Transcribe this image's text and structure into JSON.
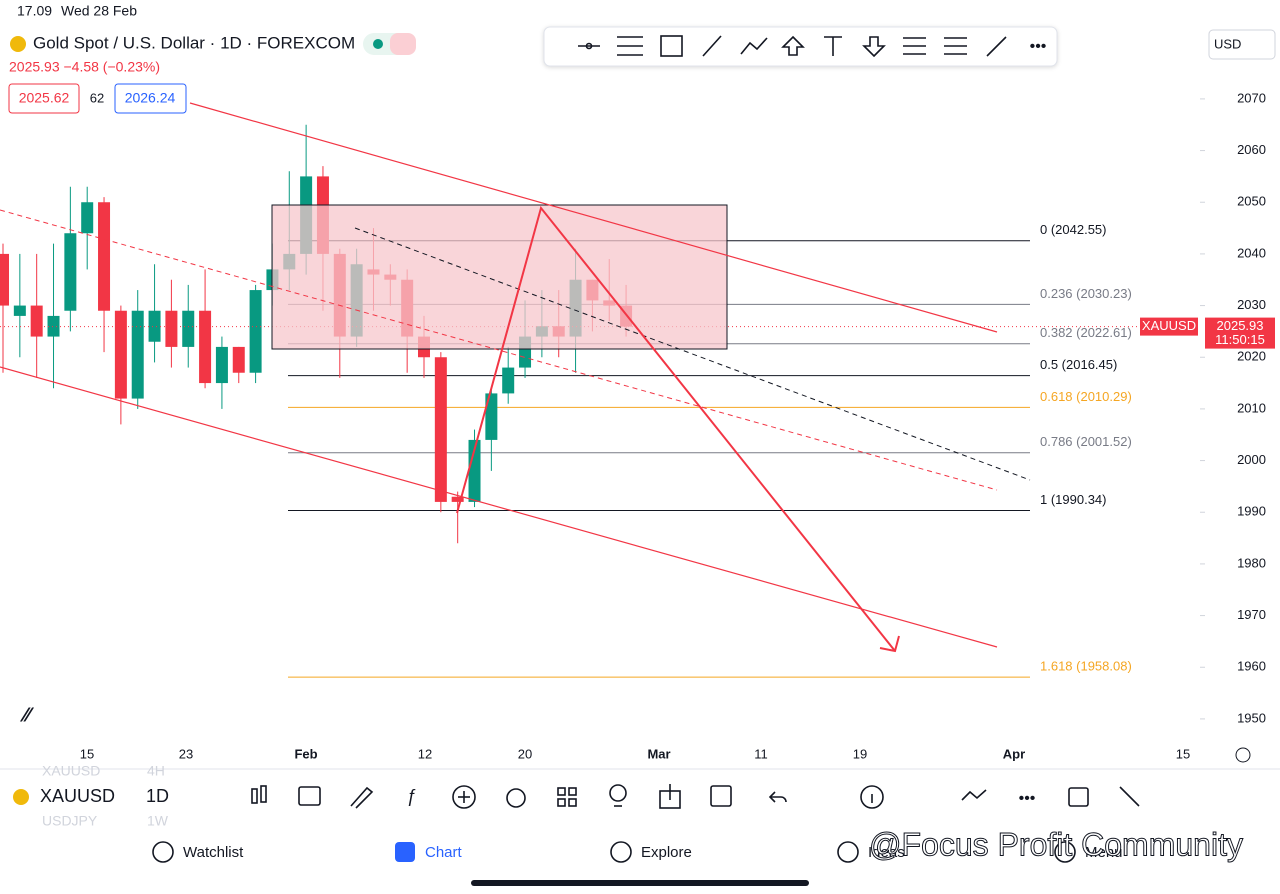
{
  "status": {
    "time": "17.09",
    "date": "Wed 28 Feb"
  },
  "header": {
    "symbol": "Gold Spot / U.S. Dollar · 1D · FOREXCOM",
    "quote": "2025.93 −4.58 (−0.23%)",
    "bid": "2025.62",
    "spread": "62",
    "ask": "2026.24",
    "currency": "USD"
  },
  "chart": {
    "yticks": [
      1950,
      1960,
      1970,
      1980,
      1990,
      2000,
      2010,
      2020,
      2030,
      2040,
      2050,
      2060,
      2070
    ],
    "ylim": [
      1940.5,
      2081.4
    ],
    "dates": [
      "15",
      "23",
      "Feb",
      "12",
      "20",
      "Mar",
      "11",
      "19",
      "Apr",
      "15"
    ],
    "candles": [
      {
        "o": 2040,
        "h": 2042,
        "l": 2017,
        "c": 2030
      },
      {
        "o": 2028,
        "h": 2040,
        "l": 2020,
        "c": 2030
      },
      {
        "o": 2030,
        "h": 2040,
        "l": 2016,
        "c": 2024
      },
      {
        "o": 2024,
        "h": 2042,
        "l": 2014,
        "c": 2028
      },
      {
        "o": 2029,
        "h": 2053,
        "l": 2025,
        "c": 2044
      },
      {
        "o": 2044,
        "h": 2053,
        "l": 2037,
        "c": 2050
      },
      {
        "o": 2050,
        "h": 2051,
        "l": 2021,
        "c": 2029
      },
      {
        "o": 2029,
        "h": 2030,
        "l": 2007,
        "c": 2012
      },
      {
        "o": 2012,
        "h": 2033,
        "l": 2010,
        "c": 2029
      },
      {
        "o": 2023,
        "h": 2038,
        "l": 2019,
        "c": 2029
      },
      {
        "o": 2029,
        "h": 2035,
        "l": 2018,
        "c": 2022
      },
      {
        "o": 2022,
        "h": 2034,
        "l": 2018,
        "c": 2029
      },
      {
        "o": 2029,
        "h": 2037,
        "l": 2014,
        "c": 2015
      },
      {
        "o": 2015,
        "h": 2024,
        "l": 2010,
        "c": 2022
      },
      {
        "o": 2022,
        "h": 2022,
        "l": 2015,
        "c": 2017
      },
      {
        "o": 2017,
        "h": 2034,
        "l": 2015,
        "c": 2033
      },
      {
        "o": 2033,
        "h": 2042,
        "l": 2030,
        "c": 2037
      },
      {
        "o": 2037,
        "h": 2056,
        "l": 2033,
        "c": 2040
      },
      {
        "o": 2040,
        "h": 2065,
        "l": 2036,
        "c": 2055
      },
      {
        "o": 2055,
        "h": 2057,
        "l": 2029,
        "c": 2040
      },
      {
        "o": 2040,
        "h": 2041,
        "l": 2016,
        "c": 2024
      },
      {
        "o": 2024,
        "h": 2041,
        "l": 2022,
        "c": 2038
      },
      {
        "o": 2037,
        "h": 2045,
        "l": 2029,
        "c": 2036
      },
      {
        "o": 2036,
        "h": 2038,
        "l": 2030,
        "c": 2035
      },
      {
        "o": 2035,
        "h": 2037,
        "l": 2017,
        "c": 2024
      },
      {
        "o": 2024,
        "h": 2028,
        "l": 2016,
        "c": 2020
      },
      {
        "o": 2020,
        "h": 2021,
        "l": 1990,
        "c": 1992
      },
      {
        "o": 1993,
        "h": 1994,
        "l": 1984,
        "c": 1992
      },
      {
        "o": 1992,
        "h": 2006,
        "l": 1991,
        "c": 2004
      },
      {
        "o": 2004,
        "h": 2014,
        "l": 1998,
        "c": 2013
      },
      {
        "o": 2013,
        "h": 2022,
        "l": 2011,
        "c": 2018
      },
      {
        "o": 2018,
        "h": 2031,
        "l": 2016,
        "c": 2024
      },
      {
        "o": 2024,
        "h": 2033,
        "l": 2020,
        "c": 2026
      },
      {
        "o": 2026,
        "h": 2033,
        "l": 2020,
        "c": 2024
      },
      {
        "o": 2024,
        "h": 2041,
        "l": 2017,
        "c": 2035
      },
      {
        "o": 2035,
        "h": 2035,
        "l": 2025,
        "c": 2031
      },
      {
        "o": 2031,
        "h": 2039,
        "l": 2027,
        "c": 2030
      },
      {
        "o": 2030,
        "h": 2034,
        "l": 2024,
        "c": 2025.93
      }
    ],
    "fib": [
      {
        "price": 2042.55,
        "label": "0 (2042.55)",
        "color": "#131722"
      },
      {
        "price": 2030.23,
        "label": "0.236 (2030.23)",
        "color": "#787b86"
      },
      {
        "price": 2022.61,
        "label": "0.382 (2022.61)",
        "color": "#787b86"
      },
      {
        "price": 2016.45,
        "label": "0.5 (2016.45)",
        "color": "#131722"
      },
      {
        "price": 2010.29,
        "label": "0.618 (2010.29)",
        "color": "#f5a623"
      },
      {
        "price": 2001.52,
        "label": "0.786 (2001.52)",
        "color": "#787b86"
      },
      {
        "price": 1990.34,
        "label": "1 (1990.34)",
        "color": "#131722"
      },
      {
        "price": 1958.08,
        "label": "1.618 (1958.08)",
        "color": "#f5a623"
      }
    ],
    "last": {
      "symbol": "XAUUSD",
      "price": 2025.93,
      "label": "2025.93",
      "countdown": "11:50:15"
    }
  },
  "toolbar": {
    "symbol": "XAUUSD",
    "interval": "1D",
    "ghost1": "XAUUSD",
    "ghost1i": "4H",
    "ghost2": "USDJPY",
    "ghost2i": "1W"
  },
  "tabs": [
    "Watchlist",
    "Chart",
    "Explore",
    "Ideas",
    "Menu"
  ],
  "watermark": "@Focus Profit Community"
}
